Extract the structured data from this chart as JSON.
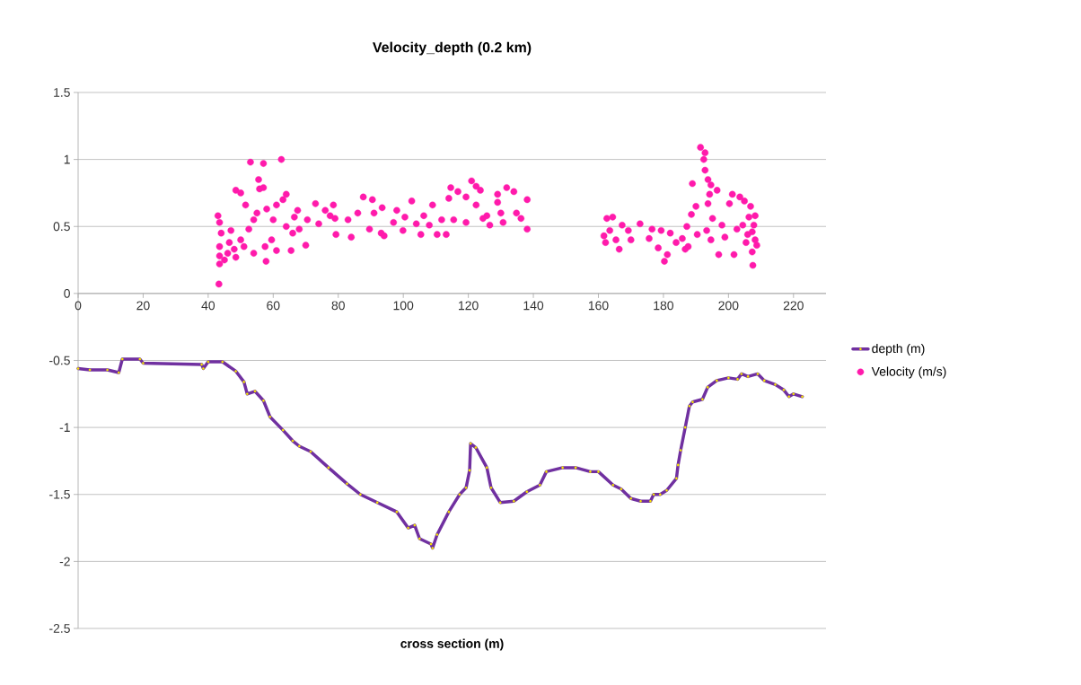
{
  "chart_data": {
    "type": "line",
    "title": "Velocity_depth (0.2 km)",
    "xlabel": "cross section (m)",
    "xlim": [
      0,
      230
    ],
    "xticks": [
      0,
      20,
      40,
      60,
      80,
      100,
      120,
      140,
      160,
      180,
      200,
      220
    ],
    "ylim": [
      -2.5,
      1.5
    ],
    "yticks": [
      -2.5,
      -2,
      -1.5,
      -1,
      -0.5,
      0,
      0.5,
      1,
      1.5
    ],
    "grid": "y",
    "legend": "right",
    "marker": "circle",
    "series": [
      {
        "name": "depth (m)",
        "color": "#7030a0",
        "x": [
          0,
          3.6,
          9,
          12.5,
          13.6,
          19,
          20,
          38,
          38.5,
          40,
          44.4,
          48.5,
          51,
          52,
          54.4,
          57,
          59,
          63,
          66,
          68,
          71.5,
          77,
          82.7,
          86.8,
          92,
          98,
          101.5,
          103.5,
          105,
          108.5,
          109,
          110.4,
          114,
          117.3,
          119.3,
          120.4,
          120.7,
          122.3,
          125.7,
          127,
          129.8,
          134,
          138,
          142,
          144,
          149,
          153,
          157.5,
          160,
          164.5,
          167,
          170,
          173,
          176,
          177,
          179,
          181,
          184,
          184.5,
          185.3,
          186.7,
          188,
          189,
          192,
          193.6,
          196.4,
          200,
          202.8,
          204,
          206,
          209,
          211,
          214.4,
          217,
          218.6,
          220,
          222.7
        ],
        "values": [
          -0.56,
          -0.57,
          -0.57,
          -0.59,
          -0.49,
          -0.49,
          -0.52,
          -0.53,
          -0.56,
          -0.51,
          -0.51,
          -0.58,
          -0.66,
          -0.75,
          -0.73,
          -0.8,
          -0.92,
          -1.02,
          -1.1,
          -1.14,
          -1.18,
          -1.3,
          -1.42,
          -1.5,
          -1.56,
          -1.63,
          -1.75,
          -1.73,
          -1.83,
          -1.87,
          -1.9,
          -1.8,
          -1.63,
          -1.5,
          -1.45,
          -1.32,
          -1.12,
          -1.15,
          -1.3,
          -1.45,
          -1.56,
          -1.55,
          -1.48,
          -1.43,
          -1.33,
          -1.3,
          -1.3,
          -1.33,
          -1.33,
          -1.43,
          -1.46,
          -1.53,
          -1.55,
          -1.55,
          -1.5,
          -1.5,
          -1.47,
          -1.38,
          -1.28,
          -1.17,
          -1.0,
          -0.84,
          -0.81,
          -0.79,
          -0.7,
          -0.65,
          -0.63,
          -0.64,
          -0.6,
          -0.62,
          -0.6,
          -0.65,
          -0.68,
          -0.72,
          -0.77,
          -0.75,
          -0.77
        ]
      },
      {
        "name": "Velocity (m/s)",
        "type": "scatter",
        "color": "#ff1aab",
        "x": [
          43.3,
          43,
          43.5,
          44,
          43.5,
          43.5,
          43.5,
          45,
          46,
          46.5,
          47,
          48,
          48.5,
          48.5,
          50,
          50,
          51,
          51.5,
          52.5,
          53,
          54,
          54,
          55,
          55.5,
          55.8,
          57,
          57,
          57.5,
          57.8,
          58,
          59.5,
          60,
          61,
          61,
          62.5,
          63,
          64,
          64,
          65.5,
          66,
          66.5,
          67.5,
          68,
          70,
          70.5,
          73,
          74,
          76,
          77.5,
          78.5,
          79,
          79.3,
          83,
          84,
          86,
          87.7,
          89.6,
          90.5,
          91,
          93.2,
          93.5,
          94.1,
          97,
          98,
          99.9,
          100.5,
          102.6,
          104,
          105.4,
          106.3,
          108,
          109,
          110.4,
          111.8,
          113.2,
          114,
          114.6,
          115.5,
          116.8,
          119.3,
          119.3,
          121,
          122.4,
          122.4,
          123.7,
          124.5,
          125.7,
          126.6,
          129,
          129,
          130,
          130.7,
          131.8,
          134,
          134.8,
          136.2,
          138.1,
          138.1,
          161.7,
          162.2,
          162.6,
          163.5,
          164.4,
          165.4,
          166.4,
          167.3,
          169.2,
          170,
          172.8,
          175.6,
          176.5,
          178.4,
          179.3,
          180.3,
          181.2,
          182.1,
          183.9,
          185.8,
          186.7,
          187.2,
          187.6,
          188.6,
          188.9,
          190,
          190.4,
          191.4,
          192.4,
          192.8,
          192.8,
          193.3,
          193.7,
          193.7,
          194.2,
          194.6,
          194.6,
          195.1,
          196.5,
          197,
          198,
          198.9,
          200.3,
          201.2,
          201.7,
          202.6,
          203.5,
          204.4,
          204.9,
          205.4,
          205.9,
          206.3,
          206.8,
          207.3,
          207.3,
          207.5,
          207.8,
          208.2,
          208.2,
          208.7
        ],
        "values": [
          0.07,
          0.58,
          0.53,
          0.45,
          0.35,
          0.28,
          0.22,
          0.25,
          0.3,
          0.38,
          0.47,
          0.33,
          0.27,
          0.77,
          0.75,
          0.4,
          0.35,
          0.66,
          0.48,
          0.98,
          0.3,
          0.55,
          0.6,
          0.85,
          0.78,
          0.97,
          0.79,
          0.35,
          0.24,
          0.63,
          0.4,
          0.55,
          0.32,
          0.66,
          1.0,
          0.7,
          0.74,
          0.5,
          0.32,
          0.45,
          0.57,
          0.62,
          0.48,
          0.36,
          0.55,
          0.67,
          0.52,
          0.62,
          0.58,
          0.66,
          0.56,
          0.44,
          0.55,
          0.42,
          0.6,
          0.72,
          0.48,
          0.7,
          0.6,
          0.45,
          0.64,
          0.43,
          0.53,
          0.62,
          0.47,
          0.57,
          0.69,
          0.52,
          0.44,
          0.58,
          0.51,
          0.66,
          0.44,
          0.55,
          0.44,
          0.71,
          0.79,
          0.55,
          0.76,
          0.53,
          0.72,
          0.84,
          0.8,
          0.66,
          0.77,
          0.56,
          0.58,
          0.51,
          0.74,
          0.68,
          0.6,
          0.53,
          0.79,
          0.76,
          0.6,
          0.56,
          0.7,
          0.48,
          0.43,
          0.38,
          0.56,
          0.47,
          0.57,
          0.4,
          0.33,
          0.51,
          0.47,
          0.4,
          0.52,
          0.41,
          0.48,
          0.34,
          0.47,
          0.24,
          0.29,
          0.45,
          0.38,
          0.41,
          0.33,
          0.5,
          0.35,
          0.59,
          0.82,
          0.65,
          0.44,
          1.09,
          1.0,
          1.05,
          0.92,
          0.47,
          0.85,
          0.67,
          0.74,
          0.81,
          0.4,
          0.56,
          0.77,
          0.29,
          0.51,
          0.42,
          0.67,
          0.74,
          0.29,
          0.48,
          0.72,
          0.51,
          0.69,
          0.38,
          0.44,
          0.57,
          0.65,
          0.31,
          0.46,
          0.21,
          0.51,
          0.58,
          0.4,
          0.36
        ]
      }
    ]
  }
}
